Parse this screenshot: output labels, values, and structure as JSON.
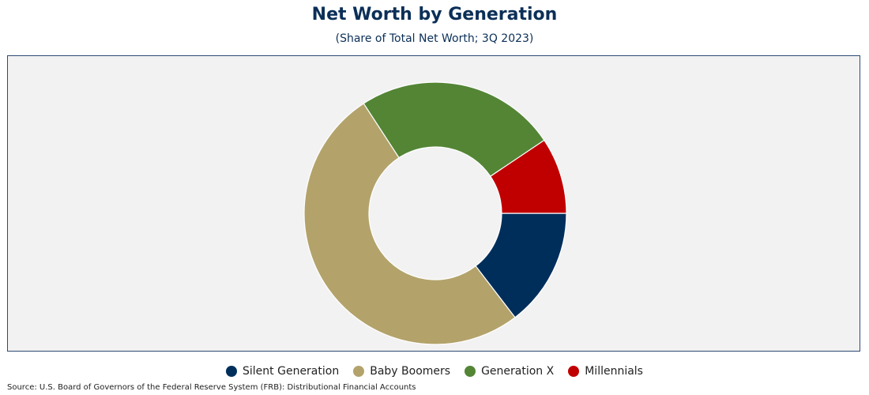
{
  "header": {
    "title": "Net Worth by Generation",
    "subtitle": "(Share of Total Net Worth; 3Q 2023)"
  },
  "footer": {
    "source": "Source: U.S. Board of Governors of the Federal Reserve System (FRB): Distributional Financial Accounts"
  },
  "chart_data": {
    "type": "pie",
    "donut": true,
    "title": "Net Worth by Generation",
    "subtitle": "(Share of Total Net Worth; 3Q 2023)",
    "categories": [
      "Silent Generation",
      "Baby Boomers",
      "Generation X",
      "Millennials"
    ],
    "values": [
      14.6,
      51.2,
      24.8,
      9.4
    ],
    "colors": [
      "#002e5b",
      "#b3a36b",
      "#538535",
      "#c00000"
    ],
    "legend_position": "bottom",
    "legend": [
      {
        "label": "Silent Generation",
        "color": "#002e5b"
      },
      {
        "label": "Baby Boomers",
        "color": "#b3a36b"
      },
      {
        "label": "Generation X",
        "color": "#538535"
      },
      {
        "label": "Millennials",
        "color": "#c00000"
      }
    ]
  }
}
